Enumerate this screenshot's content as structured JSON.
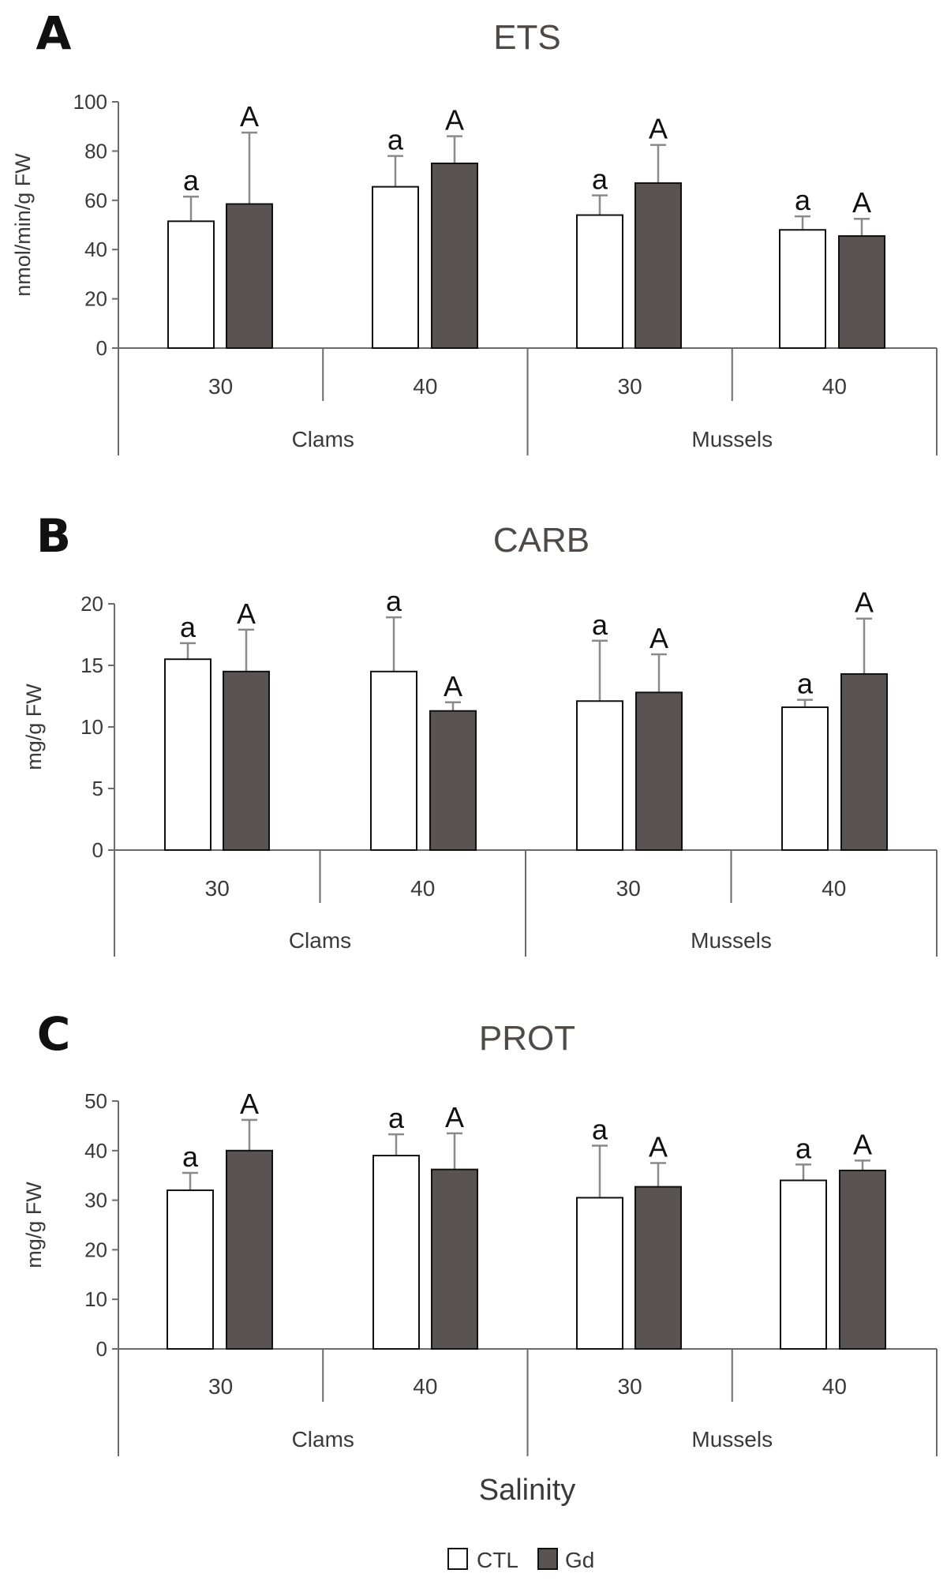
{
  "xlabel": "Salinity",
  "legend": {
    "items": [
      {
        "label": "CTL",
        "color": "#ffffff"
      },
      {
        "label": "Gd",
        "color": "#595451"
      }
    ]
  },
  "chart_data": [
    {
      "type": "bar",
      "panel": "A",
      "title": "ETS",
      "ylabel": "nmol/min/g FW",
      "ylim": [
        0,
        100
      ],
      "yticks": [
        0,
        20,
        40,
        60,
        80,
        100
      ],
      "categories": [
        "30",
        "40",
        "30",
        "40"
      ],
      "groups": [
        {
          "label": "Clams",
          "span": [
            0,
            1
          ]
        },
        {
          "label": "Mussels",
          "span": [
            2,
            3
          ]
        }
      ],
      "series": [
        {
          "name": "CTL",
          "values": [
            51.5,
            65.5,
            54,
            48
          ],
          "errors": [
            10,
            12.5,
            8,
            5.5
          ],
          "sig": [
            "a",
            "a",
            "a",
            "a"
          ]
        },
        {
          "name": "Gd",
          "values": [
            58.5,
            75,
            67,
            45.5
          ],
          "errors": [
            29,
            11,
            15.5,
            7
          ],
          "sig": [
            "A",
            "A",
            "A",
            "A"
          ]
        }
      ]
    },
    {
      "type": "bar",
      "panel": "B",
      "title": "CARB",
      "ylabel": "mg/g FW",
      "ylim": [
        0,
        20
      ],
      "yticks": [
        0,
        5,
        10,
        15,
        20
      ],
      "categories": [
        "30",
        "40",
        "30",
        "40"
      ],
      "groups": [
        {
          "label": "Clams",
          "span": [
            0,
            1
          ]
        },
        {
          "label": "Mussels",
          "span": [
            2,
            3
          ]
        }
      ],
      "series": [
        {
          "name": "CTL",
          "values": [
            15.5,
            14.5,
            12.1,
            11.6
          ],
          "errors": [
            1.3,
            4.4,
            4.9,
            0.6
          ],
          "sig": [
            "a",
            "a",
            "a",
            "a"
          ]
        },
        {
          "name": "Gd",
          "values": [
            14.5,
            11.3,
            12.8,
            14.3
          ],
          "errors": [
            3.4,
            0.7,
            3.1,
            4.5
          ],
          "sig": [
            "A",
            "A",
            "A",
            "A"
          ]
        }
      ]
    },
    {
      "type": "bar",
      "panel": "C",
      "title": "PROT",
      "ylabel": "mg/g FW",
      "ylim": [
        0,
        50
      ],
      "yticks": [
        0,
        10,
        20,
        30,
        40,
        50
      ],
      "categories": [
        "30",
        "40",
        "30",
        "40"
      ],
      "groups": [
        {
          "label": "Clams",
          "span": [
            0,
            1
          ]
        },
        {
          "label": "Mussels",
          "span": [
            2,
            3
          ]
        }
      ],
      "series": [
        {
          "name": "CTL",
          "values": [
            32,
            39,
            30.5,
            34
          ],
          "errors": [
            3.5,
            4.3,
            10.5,
            3.2
          ],
          "sig": [
            "a",
            "a",
            "a",
            "a"
          ]
        },
        {
          "name": "Gd",
          "values": [
            40,
            36.2,
            32.7,
            36
          ],
          "errors": [
            6.2,
            7.3,
            4.8,
            2
          ],
          "sig": [
            "A",
            "A",
            "A",
            "A"
          ]
        }
      ]
    }
  ]
}
